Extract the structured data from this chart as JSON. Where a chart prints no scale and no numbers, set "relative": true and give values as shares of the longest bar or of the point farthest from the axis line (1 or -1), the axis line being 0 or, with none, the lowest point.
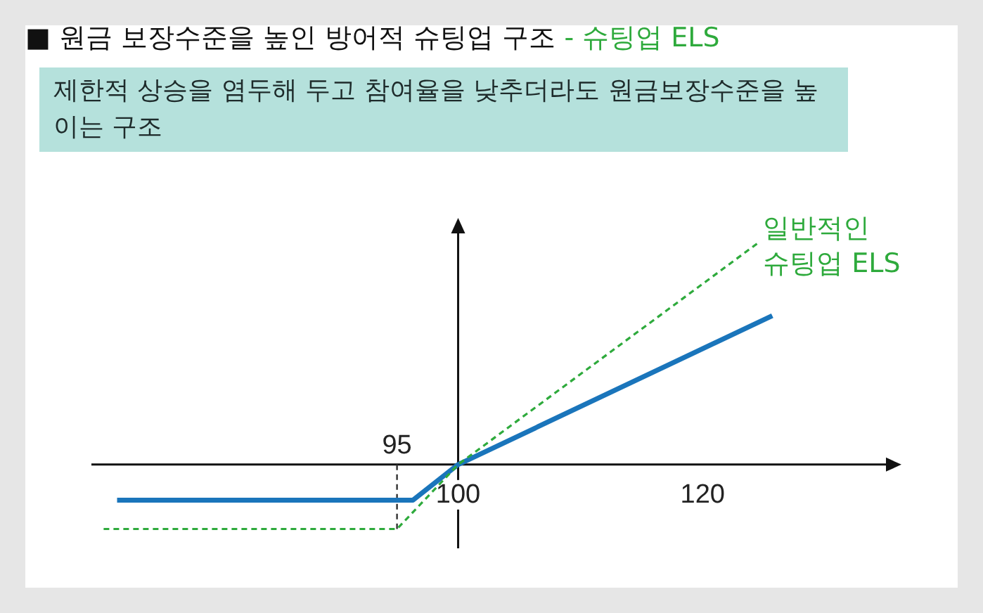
{
  "chart_data": {
    "type": "line",
    "title": "■ 원금 보장수준을 높인 방어적 슈팅업 구조 - 슈팅업 ELS",
    "subtitle": "제한적 상승을 염두해 두고 참여율을 낮추더라도 원금보장수준을 높이는 구조",
    "relative": true,
    "xlim": [
      70,
      135
    ],
    "xticks": [
      100,
      120
    ],
    "ref_lines": [
      {
        "axis": "x",
        "value": 95,
        "label": "95",
        "color": "#333333",
        "line_style": "dashed"
      }
    ],
    "series": [
      {
        "color": "#1a75bb",
        "line_style": "solid",
        "x": [
          72.1,
          96.3,
          100,
          125.7
        ],
        "values": [
          -0.16,
          -0.16,
          0,
          0.67
        ]
      },
      {
        "name": "일반적인 슈팅업 ELS",
        "color": "#2eaa3c",
        "line_style": "dashed",
        "x": [
          71,
          95,
          100,
          124.6
        ],
        "values": [
          -0.29,
          -0.29,
          0,
          1
        ]
      }
    ]
  }
}
